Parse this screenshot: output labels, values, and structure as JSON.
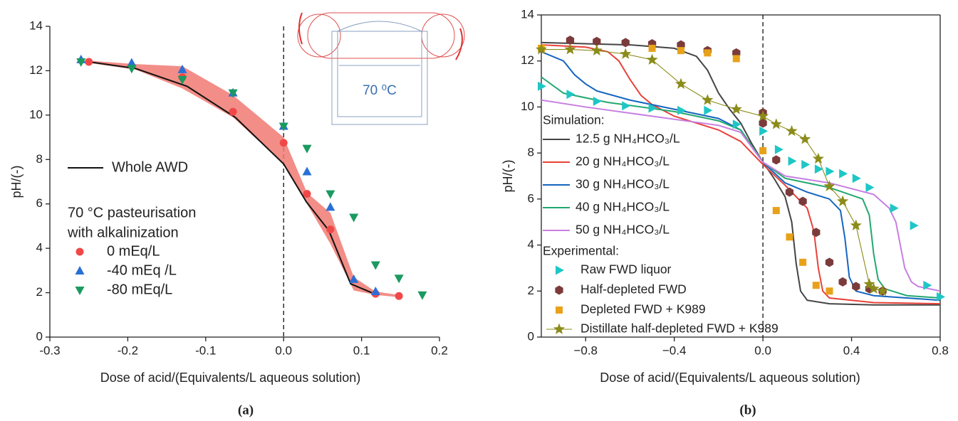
{
  "chart_data": [
    {
      "type": "line",
      "panel_label": "(a)",
      "x_label": "Dose of acid/(Equivalents/L aqueous solution)",
      "y_label": "pH/(-)",
      "xlim": [
        -0.3,
        0.2
      ],
      "xticks": [
        -0.3,
        -0.2,
        -0.1,
        {
          "value": 0,
          "label": "0.0"
        },
        0.1,
        0.2
      ],
      "ylim": [
        0,
        14
      ],
      "yticks": [
        0,
        2,
        4,
        6,
        8,
        10,
        12,
        14
      ],
      "vline": 0,
      "inset_label": "70 ⁰C",
      "legend_title": [
        "70 °C pasteurisation",
        "with alkalinization"
      ],
      "band": {
        "color": "#f07a72",
        "x": [
          -0.25,
          -0.19,
          -0.13,
          -0.065,
          0,
          0.03,
          0.06,
          0.09,
          0.118,
          0.148
        ],
        "upper": [
          12.45,
          12.3,
          12.2,
          10.9,
          9.0,
          6.5,
          5.6,
          2.7,
          2.05,
          1.9
        ],
        "lower": [
          12.35,
          12.05,
          11.2,
          9.9,
          7.8,
          6.0,
          4.2,
          2.1,
          1.9,
          1.8
        ]
      },
      "series": [
        {
          "name": "Whole AWD",
          "color": "#111111",
          "line": true,
          "marker": "none",
          "x": [
            -0.25,
            -0.19,
            -0.124,
            -0.062,
            0,
            0.029,
            0.058,
            0.086,
            0.113
          ],
          "values": [
            12.4,
            12.1,
            11.3,
            9.9,
            7.8,
            6.1,
            4.8,
            2.4,
            2.0
          ]
        },
        {
          "name": "0 mEq/L",
          "color": "#f04848",
          "line": false,
          "marker": "circle",
          "x": [
            -0.25,
            -0.13,
            -0.065,
            0,
            0.03,
            0.06,
            0.118,
            0.148
          ],
          "values": [
            12.4,
            11.7,
            10.15,
            8.75,
            6.45,
            4.85,
            1.95,
            1.85
          ]
        },
        {
          "name": "-40 mEq /L",
          "color": "#2a6fd6",
          "line": false,
          "marker": "triangle-up",
          "x": [
            -0.26,
            -0.195,
            -0.13,
            -0.065,
            0,
            0.03,
            0.06,
            0.09,
            0.118
          ],
          "values": [
            12.5,
            12.35,
            12.05,
            11.0,
            9.5,
            7.45,
            5.85,
            2.6,
            2.05
          ]
        },
        {
          "name": "-80 mEq/L",
          "color": "#1a9a60",
          "line": false,
          "marker": "triangle-down",
          "x": [
            -0.26,
            -0.195,
            -0.13,
            -0.065,
            0,
            0.03,
            0.06,
            0.09,
            0.118,
            0.148,
            0.178
          ],
          "values": [
            12.4,
            12.1,
            11.6,
            11.0,
            9.5,
            8.5,
            6.45,
            5.4,
            3.25,
            2.65,
            1.9
          ]
        }
      ]
    },
    {
      "type": "line",
      "panel_label": "(b)",
      "x_label": "Dose of acid/(Equivalents/L aqueous solution)",
      "y_label": "pH/(-)",
      "xlim": [
        -1,
        0.8
      ],
      "xticks": [
        {
          "value": -0.8,
          "label": "−0.8"
        },
        {
          "value": -0.4,
          "label": "−0.4"
        },
        {
          "value": 0,
          "label": "0.0"
        },
        0.4,
        0.8
      ],
      "ylim": [
        0,
        14
      ],
      "yticks": [
        0,
        2,
        4,
        6,
        8,
        10,
        12,
        14
      ],
      "vline": 0,
      "legend_groups": [
        "Simulation:",
        "Experimental:"
      ],
      "series": [
        {
          "name": "12.5 g NH₄HCO₃/L",
          "color": "#444444",
          "line": true,
          "marker": "none",
          "x": [
            -1,
            -0.8,
            -0.6,
            -0.4,
            -0.3,
            -0.25,
            -0.2,
            -0.15,
            -0.1,
            -0.05,
            0,
            0.05,
            0.1,
            0.13,
            0.15,
            0.17,
            0.2,
            0.3,
            0.5,
            0.8
          ],
          "values": [
            12.8,
            12.75,
            12.7,
            12.55,
            12.2,
            11.6,
            10.6,
            9.9,
            9.3,
            8.4,
            7.6,
            6.9,
            6.1,
            5.0,
            3.2,
            2.0,
            1.6,
            1.45,
            1.4,
            1.4
          ]
        },
        {
          "name": "20 g NH₄HCO₃/L",
          "color": "#e8423a",
          "line": true,
          "marker": "none",
          "x": [
            -1,
            -0.8,
            -0.7,
            -0.65,
            -0.6,
            -0.55,
            -0.5,
            -0.4,
            -0.3,
            -0.2,
            -0.1,
            0,
            0.1,
            0.2,
            0.23,
            0.25,
            0.27,
            0.3,
            0.5,
            0.8
          ],
          "values": [
            12.7,
            12.6,
            12.4,
            12.0,
            11.2,
            10.5,
            10.1,
            9.6,
            9.3,
            9.0,
            8.5,
            7.5,
            6.6,
            5.6,
            4.6,
            3.0,
            2.0,
            1.7,
            1.5,
            1.45
          ]
        },
        {
          "name": "30 g NH₄HCO₃/L",
          "color": "#1565c0",
          "line": true,
          "marker": "none",
          "x": [
            -1,
            -0.9,
            -0.85,
            -0.8,
            -0.75,
            -0.6,
            -0.4,
            -0.2,
            -0.1,
            0,
            0.1,
            0.2,
            0.3,
            0.35,
            0.37,
            0.39,
            0.42,
            0.5,
            0.8
          ],
          "values": [
            12.4,
            12.0,
            11.4,
            11.0,
            10.7,
            10.3,
            9.9,
            9.5,
            9.0,
            7.6,
            6.7,
            6.3,
            6.0,
            5.5,
            4.3,
            2.6,
            2.0,
            1.8,
            1.6
          ]
        },
        {
          "name": "40 g NH₄HCO₃/L",
          "color": "#22a870",
          "line": true,
          "marker": "none",
          "x": [
            -1,
            -0.9,
            -0.7,
            -0.4,
            -0.2,
            -0.1,
            0,
            0.1,
            0.3,
            0.45,
            0.48,
            0.5,
            0.52,
            0.55,
            0.65,
            0.8
          ],
          "values": [
            11.3,
            10.6,
            10.2,
            9.8,
            9.4,
            9.0,
            7.6,
            6.9,
            6.5,
            6.0,
            5.3,
            3.6,
            2.5,
            2.1,
            1.8,
            1.7
          ]
        },
        {
          "name": "50 g NH₄HCO₃/L",
          "color": "#c77fe0",
          "line": true,
          "marker": "none",
          "x": [
            -1,
            -0.8,
            -0.5,
            -0.2,
            -0.1,
            0,
            0.1,
            0.3,
            0.5,
            0.57,
            0.6,
            0.62,
            0.64,
            0.67,
            0.7,
            0.8
          ],
          "values": [
            10.3,
            10.0,
            9.6,
            9.2,
            8.9,
            7.6,
            7.0,
            6.7,
            6.2,
            5.6,
            5.0,
            4.0,
            3.0,
            2.4,
            2.2,
            2.0
          ]
        },
        {
          "name": "Raw FWD liquor",
          "color": "#1fc6c6",
          "line": false,
          "marker": "triangle-right",
          "x": [
            -1,
            -0.87,
            -0.75,
            -0.62,
            -0.5,
            -0.37,
            -0.25,
            -0.12,
            0,
            0.07,
            0.13,
            0.19,
            0.25,
            0.3,
            0.36,
            0.42,
            0.48,
            0.59,
            0.68,
            0.74,
            0.8
          ],
          "values": [
            10.9,
            10.55,
            10.25,
            10.05,
            9.95,
            9.85,
            9.85,
            9.25,
            8.95,
            8.15,
            7.65,
            7.5,
            7.3,
            7.2,
            7.1,
            6.9,
            6.5,
            5.6,
            4.85,
            2.25,
            1.75
          ]
        },
        {
          "name": "Half-depleted FWD",
          "color": "#7b3b3b",
          "line": false,
          "marker": "hexagon",
          "x": [
            -0.87,
            -0.75,
            -0.62,
            -0.5,
            -0.37,
            -0.25,
            -0.12,
            0,
            0,
            0.06,
            0.12,
            0.18,
            0.24,
            0.3,
            0.36,
            0.42,
            0.48,
            0.54
          ],
          "values": [
            12.9,
            12.85,
            12.8,
            12.75,
            12.7,
            12.45,
            12.35,
            9.75,
            9.3,
            7.7,
            6.3,
            5.9,
            4.55,
            3.25,
            2.4,
            2.2,
            2.1,
            2.0
          ]
        },
        {
          "name": "Depleted FWD + K989",
          "color": "#e8a21a",
          "line": false,
          "marker": "square",
          "x": [
            -1,
            -0.5,
            -0.37,
            -0.25,
            -0.12,
            0,
            0.06,
            0.12,
            0.18,
            0.24,
            0.3
          ],
          "values": [
            12.55,
            12.55,
            12.45,
            12.35,
            12.1,
            8.1,
            5.5,
            4.35,
            3.25,
            2.25,
            2.0
          ]
        },
        {
          "name": "Distillate half-depleted FWD + K989",
          "color": "#8b8b1a",
          "line": true,
          "marker": "star",
          "x": [
            -1,
            -0.87,
            -0.75,
            -0.62,
            -0.5,
            -0.37,
            -0.25,
            -0.12,
            0,
            0.06,
            0.13,
            0.19,
            0.25,
            0.3,
            0.36,
            0.42,
            0.48,
            0.5,
            0.54
          ],
          "values": [
            12.5,
            12.5,
            12.45,
            12.3,
            12.05,
            11.0,
            10.3,
            9.9,
            9.6,
            9.25,
            8.95,
            8.6,
            7.75,
            6.55,
            5.9,
            4.85,
            2.3,
            2.1,
            2.0
          ]
        }
      ]
    }
  ]
}
